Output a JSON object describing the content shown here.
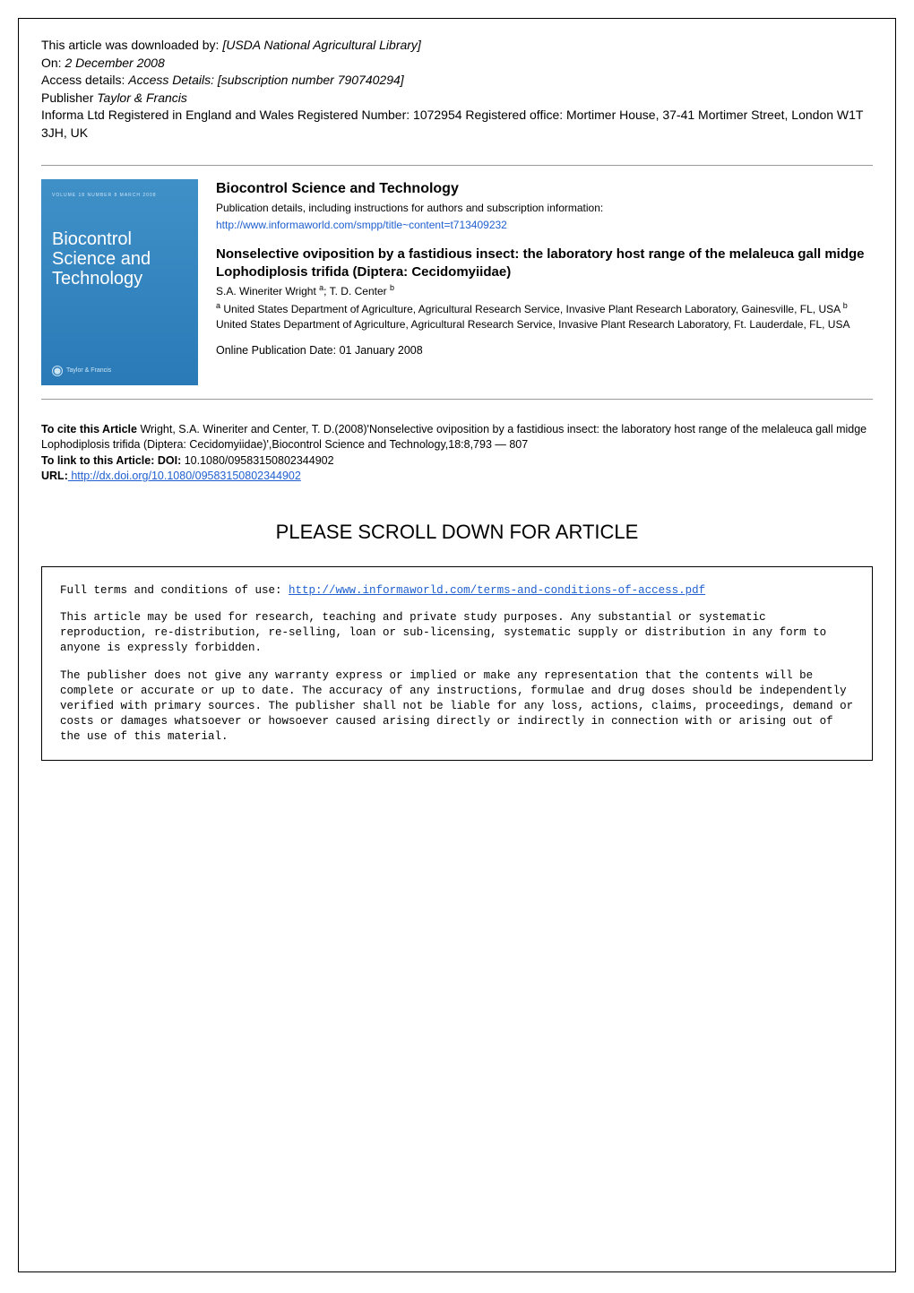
{
  "download_info": {
    "line1_prefix": "This article was downloaded by: ",
    "line1_value": "[USDA National Agricultural Library]",
    "line2_prefix": "On: ",
    "line2_value": "2 December 2008",
    "line3_prefix": "Access details: ",
    "line3_value": "Access Details: [subscription number 790740294]",
    "line4_prefix": "Publisher ",
    "line4_value": "Taylor & Francis",
    "line5": "Informa Ltd Registered in England and Wales Registered Number: 1072954 Registered office: Mortimer House, 37-41 Mortimer Street, London W1T 3JH, UK"
  },
  "cover": {
    "header": "VOLUME 18    NUMBER 8    MARCH 2008",
    "title_line1": "Biocontrol",
    "title_line2": "Science",
    "title_line2_suffix": " and",
    "title_line3": "Technology",
    "publisher": "Taylor & Francis"
  },
  "journal": {
    "title": "Biocontrol Science and Technology",
    "subtitle": "Publication details, including instructions for authors and subscription information:",
    "url": "http://www.informaworld.com/smpp/title~content=t713409232"
  },
  "article": {
    "title": "Nonselective oviposition by a fastidious insect: the laboratory host range of the melaleuca gall midge Lophodiplosis trifida (Diptera: Cecidomyiidae)",
    "author1": "S.A. Wineriter Wright ",
    "author1_sup": "a",
    "author_sep": "; ",
    "author2": "T. D. Center ",
    "author2_sup": "b",
    "aff_a_sup": "a",
    "aff_a": " United States Department of Agriculture, Agricultural Research Service, Invasive Plant Research Laboratory, Gainesville, FL, USA ",
    "aff_b_sup": "b",
    "aff_b": " United States Department of Agriculture, Agricultural Research Service, Invasive Plant Research Laboratory, Ft. Lauderdale, FL, USA",
    "pub_date": "Online Publication Date: 01 January 2008"
  },
  "citation": {
    "cite_label": "To cite this Article",
    "cite_text": " Wright, S.A. Wineriter and Center, T. D.(2008)'Nonselective oviposition by a fastidious insect: the laboratory host range of the melaleuca gall midge Lophodiplosis trifida (Diptera: Cecidomyiidae)',Biocontrol Science and Technology,18:8,793 — 807",
    "doi_label": "To link to this Article: DOI:",
    "doi_value": " 10.1080/09583150802344902",
    "url_label": "URL:",
    "url_value": " http://dx.doi.org/10.1080/09583150802344902"
  },
  "scroll_heading": "PLEASE SCROLL DOWN FOR ARTICLE",
  "terms": {
    "line1_prefix": "Full terms and conditions of use: ",
    "line1_url": "http://www.informaworld.com/terms-and-conditions-of-access.pdf",
    "para2": "This article may be used for research, teaching and private study purposes. Any substantial or systematic reproduction, re-distribution, re-selling, loan or sub-licensing, systematic supply or distribution in any form to anyone is expressly forbidden.",
    "para3": "The publisher does not give any warranty express or implied or make any representation that the contents will be complete or accurate or up to date. The accuracy of any instructions, formulae and drug doses should be independently verified with primary sources. The publisher shall not be liable for any loss, actions, claims, proceedings, demand or costs or damages whatsoever or howsoever caused arising directly or indirectly in connection with or arising out of the use of this material."
  },
  "colors": {
    "link": "#2060d0",
    "cover_bg_top": "#4090c8",
    "cover_bg_bottom": "#2a7ab8",
    "border": "#000000"
  }
}
